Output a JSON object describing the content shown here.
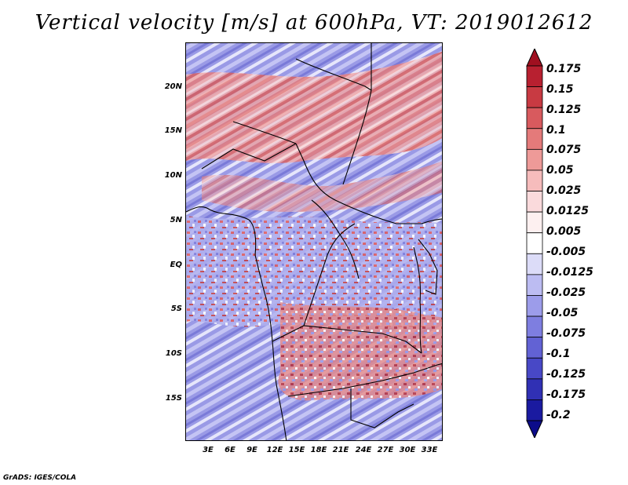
{
  "title": "Vertical velocity [m/s] at 600hPa, VT: 2019012612",
  "credit": "GrADS: IGES/COLA",
  "map": {
    "lat_ticks": [
      "20N",
      "15N",
      "10N",
      "5N",
      "EQ",
      "5S",
      "10S",
      "15S"
    ],
    "lon_ticks": [
      "3E",
      "6E",
      "9E",
      "12E",
      "15E",
      "18E",
      "21E",
      "24E",
      "27E",
      "30E",
      "33E"
    ]
  },
  "colorbar": {
    "labels": [
      "0.175",
      "0.15",
      "0.125",
      "0.1",
      "0.075",
      "0.05",
      "0.025",
      "0.0125",
      "0.005",
      "-0.005",
      "-0.0125",
      "-0.025",
      "-0.05",
      "-0.075",
      "-0.1",
      "-0.125",
      "-0.175",
      "-0.2"
    ],
    "colors": [
      "#a01020",
      "#b82030",
      "#c83a42",
      "#d85a5e",
      "#e47a7a",
      "#ee9a98",
      "#f6bcbc",
      "#fadadc",
      "#fdf0f0",
      "#ffffff",
      "#dcdcf8",
      "#bcbcf2",
      "#9c9cea",
      "#7e7ee0",
      "#6262d4",
      "#4848c6",
      "#3030b4",
      "#1a1aa0",
      "#0c0c8a"
    ]
  }
}
